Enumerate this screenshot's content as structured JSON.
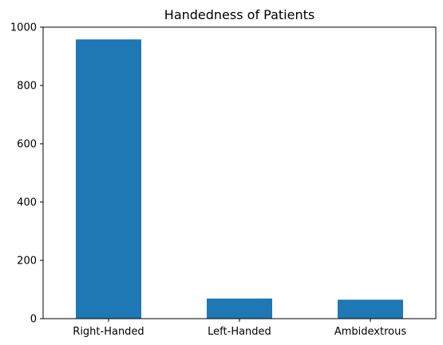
{
  "chart_data": {
    "type": "bar",
    "title": "Handedness of Patients",
    "categories": [
      "Right-Handed",
      "Left-Handed",
      "Ambidextrous"
    ],
    "values": [
      958,
      69,
      65
    ],
    "xlabel": "",
    "ylabel": "",
    "ylim": [
      0,
      1000
    ],
    "yticks": [
      "0",
      "200",
      "400",
      "600",
      "800",
      "1000"
    ],
    "grid": false,
    "legend": "none",
    "bar_color": "#1f77b4"
  }
}
